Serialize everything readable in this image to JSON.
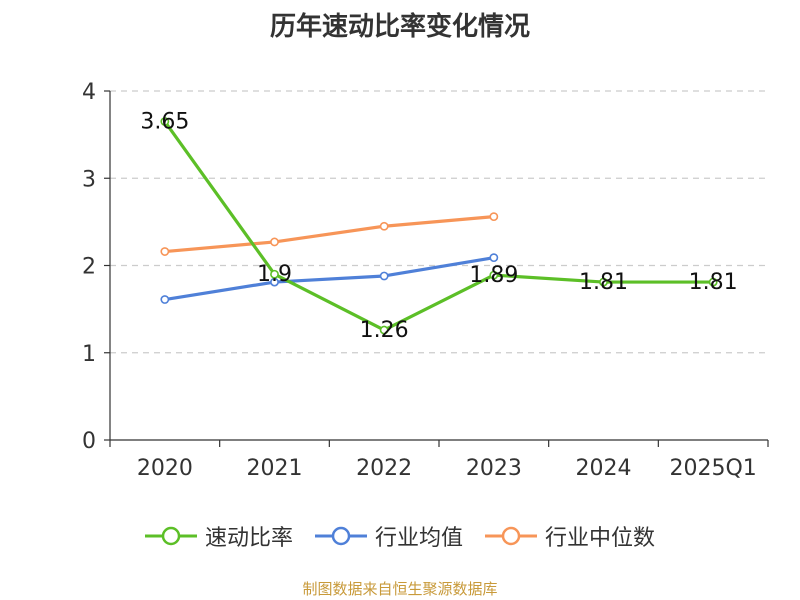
{
  "source_note": "制图数据来自恒生聚源数据库",
  "chart_data": {
    "type": "line",
    "title": "历年速动比率变化情况",
    "categories": [
      "2020",
      "2021",
      "2022",
      "2023",
      "2024",
      "2025Q1"
    ],
    "ylim": [
      0,
      4
    ],
    "yticks": [
      0,
      1,
      2,
      3,
      4
    ],
    "grid": true,
    "legend_position": "bottom",
    "series": [
      {
        "name": "速动比率",
        "color": "#5cbf27",
        "values": [
          3.65,
          1.9,
          1.26,
          1.89,
          1.81,
          1.81
        ],
        "labels": [
          "3.65",
          "1.9",
          "1.26",
          "1.89",
          "1.81",
          "1.81"
        ]
      },
      {
        "name": "行业均值",
        "color": "#4f80d8",
        "values": [
          1.61,
          1.81,
          1.88,
          2.09,
          null,
          null
        ]
      },
      {
        "name": "行业中位数",
        "color": "#f79558",
        "values": [
          2.16,
          2.27,
          2.45,
          2.56,
          null,
          null
        ]
      }
    ]
  }
}
